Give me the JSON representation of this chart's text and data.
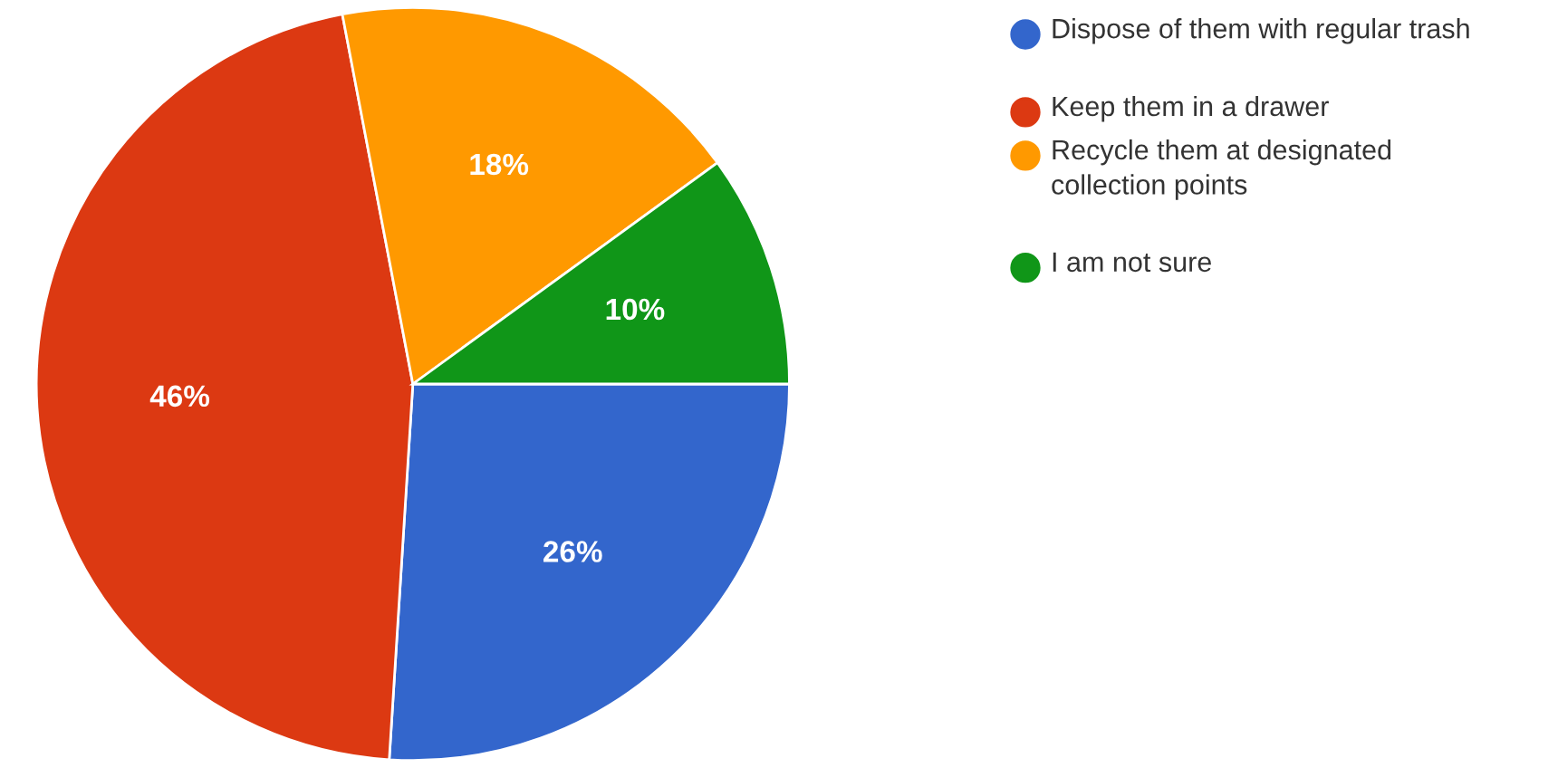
{
  "chart_data": {
    "type": "pie",
    "categories": [
      "Dispose of them with regular trash",
      "Keep them in a drawer",
      "Recycle them at designated collection points",
      "I am not sure"
    ],
    "values": [
      26,
      46,
      18,
      10
    ],
    "colors": [
      "#3366cc",
      "#dc3912",
      "#ff9900",
      "#109618"
    ],
    "value_labels": [
      "26%",
      "46%",
      "18%",
      "10%"
    ],
    "legend": "right"
  }
}
